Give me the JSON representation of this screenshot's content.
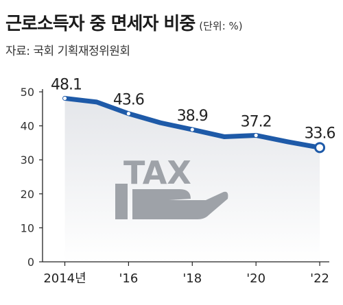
{
  "title": "근로소득자 중 면세자 비중",
  "unit": "(단위: %)",
  "source": "자료: 국회 기획재정위원회",
  "illustration": {
    "text": "TAX",
    "icon": "hand-holding-tax-sign-icon"
  },
  "colors": {
    "line": "#1e5aa8",
    "marker": "#ffffff",
    "axis": "#222222",
    "area_top": "#e4e6ea",
    "illustration": "#9ea2a8"
  },
  "chart_data": {
    "type": "line",
    "title": "근로소득자 중 면세자 비중",
    "unit": "%",
    "x": [
      2014,
      2015,
      2016,
      2017,
      2018,
      2019,
      2020,
      2021,
      2022
    ],
    "x_tick_labels": [
      {
        "x": 2014,
        "label": "2014년"
      },
      {
        "x": 2016,
        "label": "'16"
      },
      {
        "x": 2018,
        "label": "'18"
      },
      {
        "x": 2020,
        "label": "'20"
      },
      {
        "x": 2022,
        "label": "'22"
      }
    ],
    "series": [
      {
        "values": [
          48.1,
          47.0,
          43.6,
          40.9,
          38.9,
          36.8,
          37.2,
          35.3,
          33.6
        ]
      }
    ],
    "data_labels": [
      {
        "x": 2014,
        "label": "48.1"
      },
      {
        "x": 2016,
        "label": "43.6"
      },
      {
        "x": 2018,
        "label": "38.9"
      },
      {
        "x": 2020,
        "label": "37.2"
      },
      {
        "x": 2022,
        "label": "33.6"
      }
    ],
    "ylim": [
      0,
      50
    ],
    "yticks": [
      0,
      10,
      20,
      30,
      40,
      50
    ],
    "xlim": [
      2013.3,
      2022.3
    ],
    "grid": false
  }
}
